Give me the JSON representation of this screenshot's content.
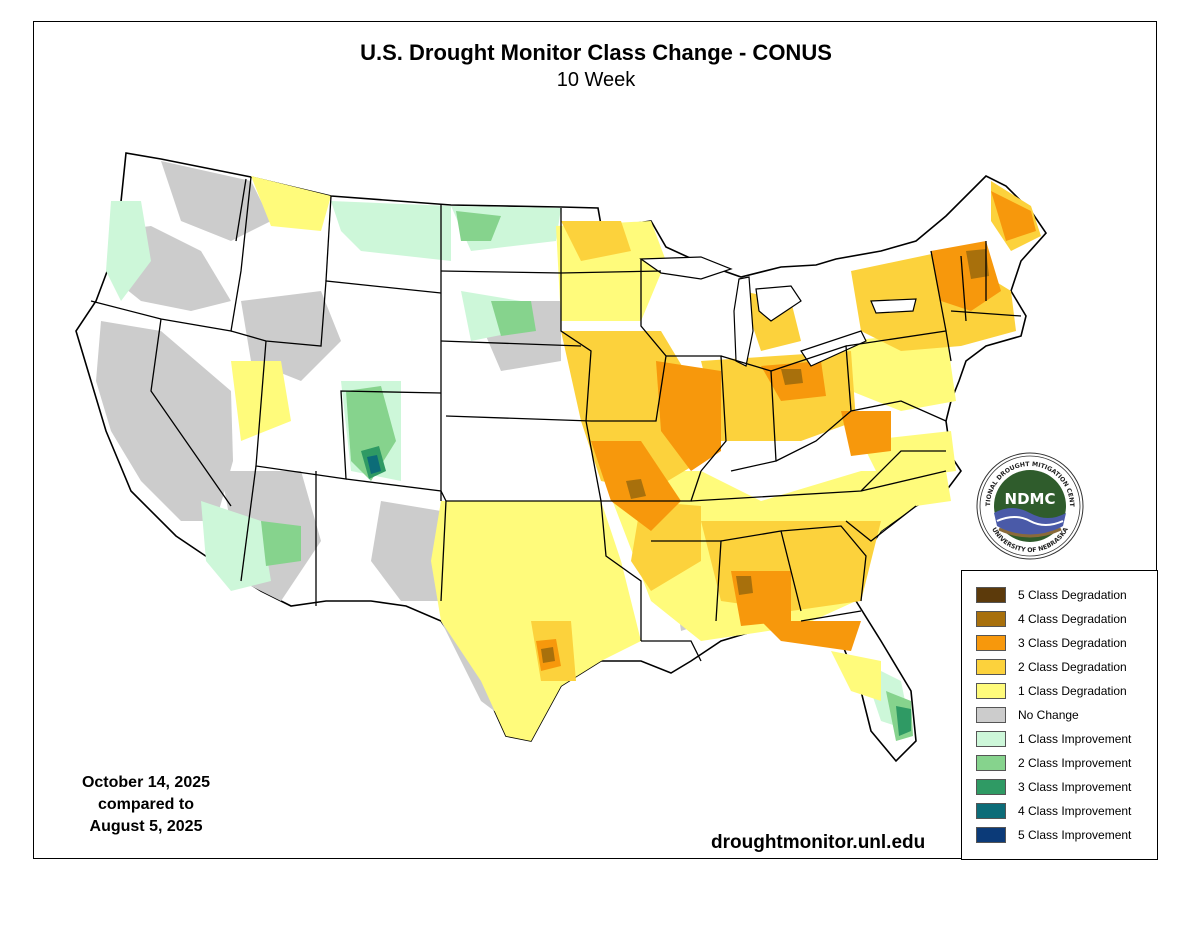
{
  "title": "U.S. Drought Monitor Class Change - CONUS",
  "subtitle": "10 Week",
  "dates": {
    "current": "October 14, 2025",
    "compared": "compared to",
    "previous": "August 5, 2025"
  },
  "url": "droughtmonitor.unl.edu",
  "logo": {
    "abbrev": "NDMC",
    "ring_top": "NATIONAL DROUGHT MITIGATION CENTER",
    "ring_bottom": "UNIVERSITY OF NEBRASKA"
  },
  "legend": [
    {
      "label": "5 Class Degradation",
      "color": "#5c3a0b"
    },
    {
      "label": "4 Class Degradation",
      "color": "#a8700c"
    },
    {
      "label": "3 Class Degradation",
      "color": "#f7980c"
    },
    {
      "label": "2 Class Degradation",
      "color": "#fcd23c"
    },
    {
      "label": "1 Class Degradation",
      "color": "#fffb7b"
    },
    {
      "label": "No Change",
      "color": "#cccccc"
    },
    {
      "label": "1 Class Improvement",
      "color": "#cdf7d9"
    },
    {
      "label": "2 Class Improvement",
      "color": "#86d38d"
    },
    {
      "label": "3 Class Improvement",
      "color": "#2f9a64"
    },
    {
      "label": "4 Class Improvement",
      "color": "#0c6c78"
    },
    {
      "label": "5 Class Improvement",
      "color": "#0b3a78"
    }
  ],
  "colors": {
    "land": "#ffffff",
    "border": "#000000",
    "logo_green": "#2f5c2c",
    "logo_blue": "#4a5aa8"
  }
}
